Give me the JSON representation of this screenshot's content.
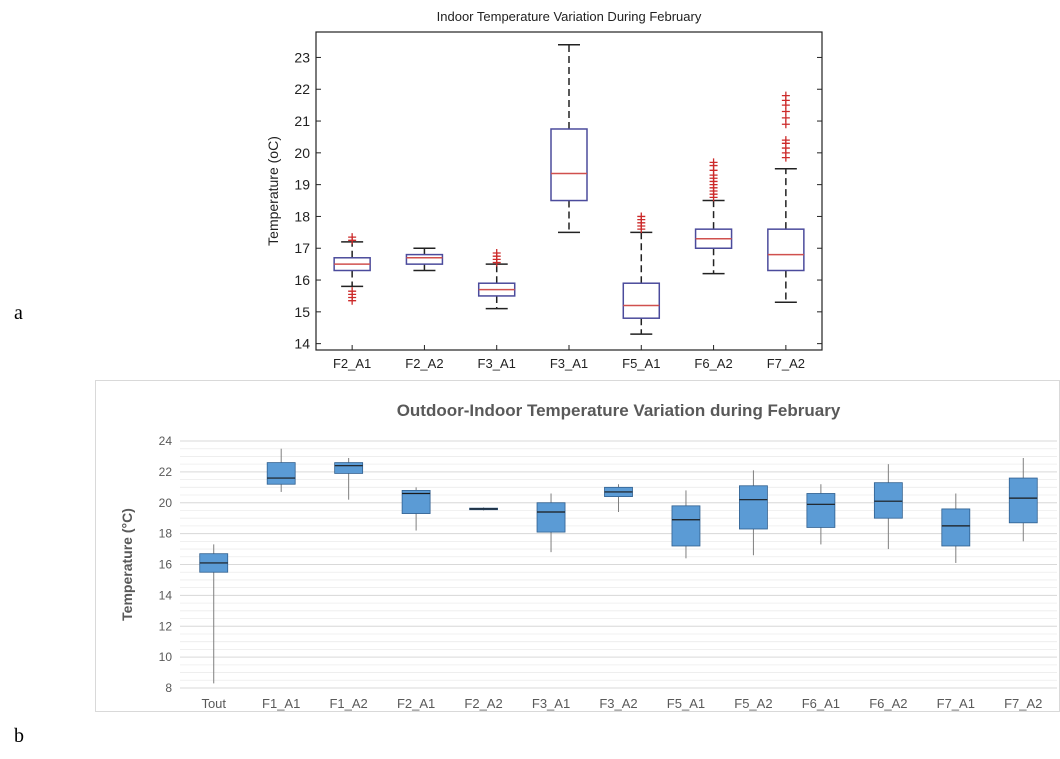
{
  "panel_labels": {
    "a": "a",
    "b": "b"
  },
  "chart_data": [
    {
      "type": "box",
      "title": "Indoor Temperature Variation During February",
      "ylabel": "Temperature (oC)",
      "xlabel": "",
      "ylim": [
        13.8,
        23.8
      ],
      "yticks": [
        14,
        15,
        16,
        17,
        18,
        19,
        20,
        21,
        22,
        23
      ],
      "grid": false,
      "colors": {
        "box": "#4b4b9c",
        "median": "#d0504e",
        "whisker": "#222222",
        "outlier": "#cc2a2a",
        "frame": "#222222"
      },
      "categories": [
        "F2_A1",
        "F2_A2",
        "F3_A1",
        "F3_A1",
        "F5_A1",
        "F6_A2",
        "F7_A2"
      ],
      "boxes": [
        {
          "min": 15.8,
          "q1": 16.3,
          "median": 16.5,
          "q3": 16.7,
          "max": 17.2,
          "outliers": [
            15.35,
            15.45,
            15.55,
            15.65,
            17.25,
            17.35
          ]
        },
        {
          "min": 16.3,
          "q1": 16.5,
          "median": 16.7,
          "q3": 16.8,
          "max": 17.0,
          "outliers": []
        },
        {
          "min": 15.1,
          "q1": 15.5,
          "median": 15.7,
          "q3": 15.9,
          "max": 16.5,
          "outliers": [
            16.55,
            16.65,
            16.75,
            16.85
          ]
        },
        {
          "min": 17.5,
          "q1": 18.5,
          "median": 19.35,
          "q3": 20.75,
          "max": 23.4,
          "outliers": []
        },
        {
          "min": 14.3,
          "q1": 14.8,
          "median": 15.2,
          "q3": 15.9,
          "max": 17.5,
          "outliers": [
            17.6,
            17.7,
            17.8,
            17.9,
            18.0
          ]
        },
        {
          "min": 16.2,
          "q1": 17.0,
          "median": 17.3,
          "q3": 17.6,
          "max": 18.5,
          "outliers": [
            18.6,
            18.7,
            18.8,
            18.9,
            19.0,
            19.1,
            19.2,
            19.3,
            19.45,
            19.6,
            19.7
          ]
        },
        {
          "min": 15.3,
          "q1": 16.3,
          "median": 16.8,
          "q3": 17.6,
          "max": 19.5,
          "outliers": [
            19.85,
            20.0,
            20.15,
            20.3,
            20.4,
            20.9,
            21.1,
            21.3,
            21.5,
            21.65,
            21.8
          ]
        }
      ]
    },
    {
      "type": "box",
      "title": "Outdoor-Indoor Temperature Variation during February",
      "ylabel": "Temperature (°C)",
      "xlabel": "",
      "ylim": [
        8,
        24
      ],
      "yticks": [
        8,
        10,
        12,
        14,
        16,
        18,
        20,
        22,
        24
      ],
      "grid": true,
      "colors": {
        "box": "#5b9bd5",
        "box_edge": "#2f5f8f",
        "median": "#1a1a1a",
        "whisker": "#7f7f7f",
        "grid": "#d9d9d9",
        "text": "#595959"
      },
      "categories": [
        "Tout",
        "F1_A1",
        "F1_A2",
        "F2_A1",
        "F2_A2",
        "F3_A1",
        "F3_A2",
        "F5_A1",
        "F5_A2",
        "F6_A1",
        "F6_A2",
        "F7_A1",
        "F7_A2"
      ],
      "boxes": [
        {
          "min": 8.3,
          "q1": 15.5,
          "median": 16.1,
          "q3": 16.7,
          "max": 17.3
        },
        {
          "min": 20.7,
          "q1": 21.2,
          "median": 21.6,
          "q3": 22.6,
          "max": 23.5
        },
        {
          "min": 20.2,
          "q1": 21.9,
          "median": 22.4,
          "q3": 22.6,
          "max": 22.9
        },
        {
          "min": 18.2,
          "q1": 19.3,
          "median": 20.6,
          "q3": 20.8,
          "max": 21.0
        },
        {
          "min": 19.5,
          "q1": 19.55,
          "median": 19.6,
          "q3": 19.65,
          "max": 19.7
        },
        {
          "min": 16.8,
          "q1": 18.1,
          "median": 19.4,
          "q3": 20.0,
          "max": 20.6
        },
        {
          "min": 19.4,
          "q1": 20.4,
          "median": 20.7,
          "q3": 21.0,
          "max": 21.2
        },
        {
          "min": 16.4,
          "q1": 17.2,
          "median": 18.9,
          "q3": 19.8,
          "max": 20.8
        },
        {
          "min": 16.6,
          "q1": 18.3,
          "median": 20.2,
          "q3": 21.1,
          "max": 22.1
        },
        {
          "min": 17.3,
          "q1": 18.4,
          "median": 19.9,
          "q3": 20.6,
          "max": 21.2
        },
        {
          "min": 17.0,
          "q1": 19.0,
          "median": 20.1,
          "q3": 21.3,
          "max": 22.5
        },
        {
          "min": 16.1,
          "q1": 17.2,
          "median": 18.5,
          "q3": 19.6,
          "max": 20.6
        },
        {
          "min": 17.5,
          "q1": 18.7,
          "median": 20.3,
          "q3": 21.6,
          "max": 22.9
        }
      ]
    }
  ]
}
